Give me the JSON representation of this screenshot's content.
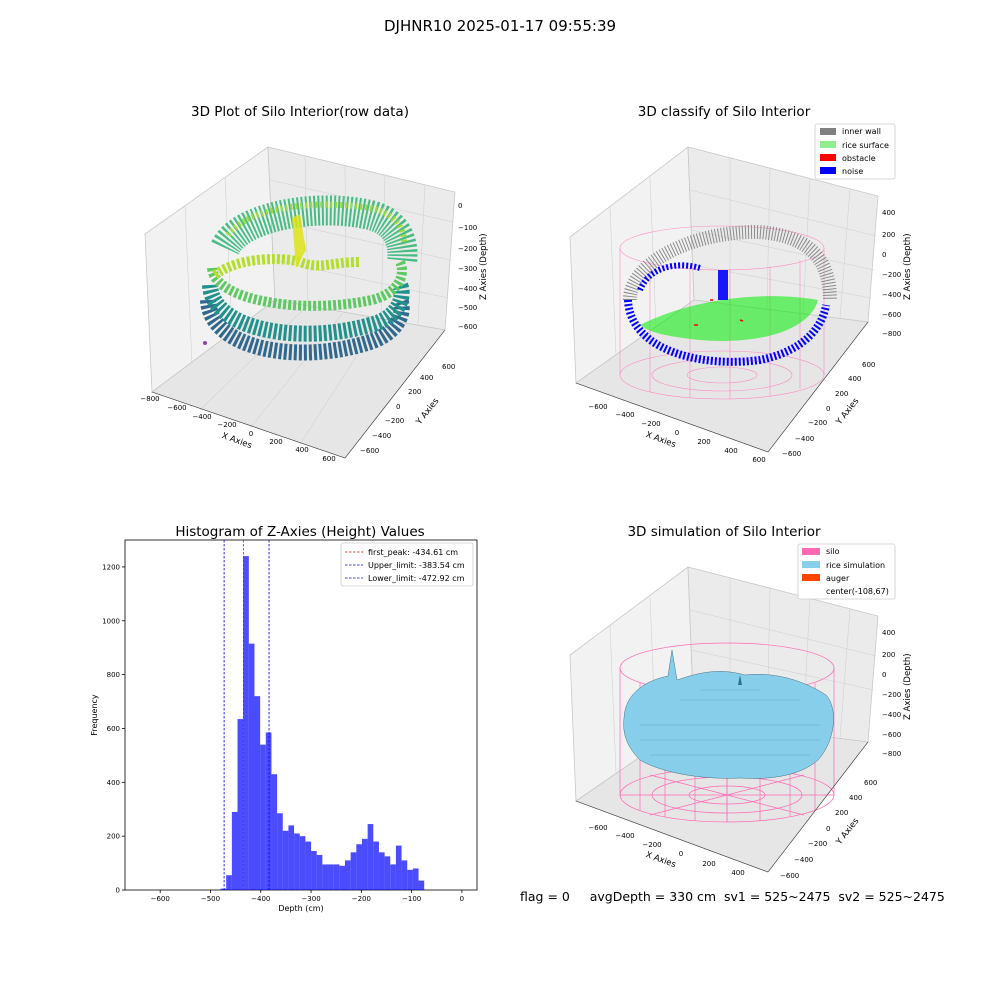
{
  "figure": {
    "suptitle": "DJHNR10 2025-01-17 09:55:39",
    "status_line": "flag = 0     avgDepth = 330 cm  sv1 = 525~2475  sv2 = 525~2475"
  },
  "panels": {
    "raw": {
      "title": "3D Plot of Silo Interior(row data)",
      "xlabel": "X Axies",
      "ylabel": "Y Axies",
      "zlabel": "Z Axies (Depth)",
      "x_ticks": [
        "−800",
        "−600",
        "−400",
        "−200",
        "0",
        "200",
        "400",
        "600"
      ],
      "y_ticks": [
        "−600",
        "−400",
        "−200",
        "0",
        "200",
        "400",
        "600"
      ],
      "z_ticks": [
        "0",
        "−100",
        "−200",
        "−300",
        "−400",
        "−500",
        "−600"
      ]
    },
    "classify": {
      "title": "3D classify of Silo Interior",
      "xlabel": "X Axies",
      "ylabel": "Y Axies",
      "zlabel": "Z Axies (Depth)",
      "x_ticks": [
        "−600",
        "−400",
        "−200",
        "0",
        "200",
        "400",
        "600"
      ],
      "y_ticks": [
        "−600",
        "−400",
        "−200",
        "0",
        "200",
        "400",
        "600"
      ],
      "z_ticks": [
        "400",
        "200",
        "0",
        "−200",
        "−400",
        "−600",
        "−800"
      ],
      "legend": [
        {
          "label": "inner wall",
          "color": "#808080"
        },
        {
          "label": "rice surface",
          "color": "#90ee90"
        },
        {
          "label": "obstacle",
          "color": "#ff0000"
        },
        {
          "label": "noise",
          "color": "#0000ff"
        }
      ]
    },
    "simulation": {
      "title": "3D simulation of Silo Interior",
      "xlabel": "X Axies",
      "ylabel": "Y Axies",
      "zlabel": "Z Axies (Depth)",
      "x_ticks": [
        "−600",
        "−400",
        "−200",
        "0",
        "200",
        "400"
      ],
      "y_ticks": [
        "−600",
        "−400",
        "−200",
        "0",
        "200",
        "400",
        "600"
      ],
      "z_ticks": [
        "400",
        "200",
        "0",
        "−200",
        "−400",
        "−600",
        "−800"
      ],
      "legend": [
        {
          "label": "silo",
          "color": "#ff69b4"
        },
        {
          "label": "rice simulation",
          "color": "#87ceeb"
        },
        {
          "label": "auger",
          "color": "#ff4500"
        },
        {
          "label": "center(-108,67)",
          "color": ""
        }
      ]
    }
  },
  "chart_data": [
    {
      "type": "histogram",
      "title": "Histogram of Z-Axies (Height) Values",
      "xlabel": "Depth (cm)",
      "ylabel": "Frequency",
      "xlim": [
        -670,
        30
      ],
      "ylim": [
        0,
        1300
      ],
      "x_ticks": [
        -600,
        -500,
        -400,
        -300,
        -200,
        -100,
        0
      ],
      "y_ticks": [
        0,
        200,
        400,
        600,
        800,
        1000,
        1200
      ],
      "x_tick_labels": [
        "−600",
        "−500",
        "−400",
        "−300",
        "−200",
        "−100",
        "0"
      ],
      "y_tick_labels": [
        "0",
        "200",
        "400",
        "600",
        "800",
        "1000",
        "1200"
      ],
      "bar_color": "#0000ff",
      "bin_width": 11.25,
      "bins": [
        [
          -480,
          5
        ],
        [
          -468.75,
          55
        ],
        [
          -457.5,
          290
        ],
        [
          -446.25,
          635
        ],
        [
          -435,
          1240
        ],
        [
          -423.75,
          915
        ],
        [
          -412.5,
          720
        ],
        [
          -401.25,
          540
        ],
        [
          -390,
          585
        ],
        [
          -378.75,
          430
        ],
        [
          -367.5,
          285
        ],
        [
          -356.25,
          220
        ],
        [
          -345,
          240
        ],
        [
          -333.75,
          210
        ],
        [
          -322.5,
          200
        ],
        [
          -311.25,
          180
        ],
        [
          -300,
          145
        ],
        [
          -288.75,
          130
        ],
        [
          -277.5,
          95
        ],
        [
          -266.25,
          95
        ],
        [
          -255,
          95
        ],
        [
          -243.75,
          90
        ],
        [
          -232.5,
          110
        ],
        [
          -221.25,
          140
        ],
        [
          -210,
          170
        ],
        [
          -198.75,
          190
        ],
        [
          -187.5,
          245
        ],
        [
          -176.25,
          180
        ],
        [
          -165,
          140
        ],
        [
          -153.75,
          125
        ],
        [
          -142.5,
          95
        ],
        [
          -131.25,
          165
        ],
        [
          -120,
          110
        ],
        [
          -108.75,
          75
        ],
        [
          -97.5,
          80
        ],
        [
          -86.25,
          35
        ]
      ],
      "reference_lines": [
        {
          "label": "first_peak: -434.61 cm",
          "value": -434.61,
          "color": "#ff0000"
        },
        {
          "label": "Upper_limit: -383.54 cm",
          "value": -383.54,
          "color": "#0000ff"
        },
        {
          "label": "Lower_limit: -472.92 cm",
          "value": -472.92,
          "color": "#0000ff"
        }
      ],
      "legend_position": "top-right"
    }
  ]
}
